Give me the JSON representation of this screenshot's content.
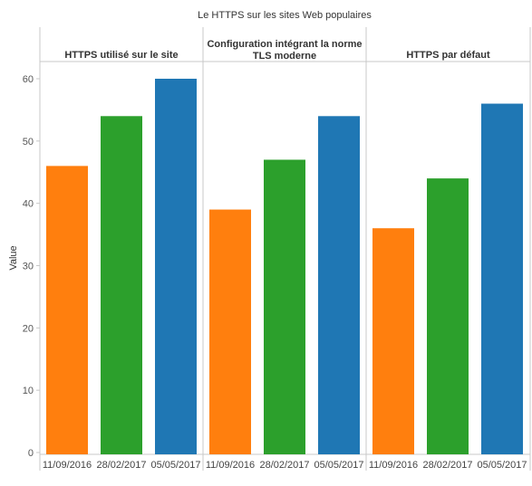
{
  "chart_data": {
    "type": "bar",
    "title": "Le HTTPS sur les sites Web populaires",
    "ylabel": "Value",
    "ylim": [
      0,
      60
    ],
    "yticks": [
      0,
      10,
      20,
      30,
      40,
      50,
      60
    ],
    "grid": false,
    "categories": [
      "11/09/2016",
      "28/02/2017",
      "05/05/2017"
    ],
    "colors": [
      "#ff7f0e",
      "#2ca02c",
      "#1f77b4"
    ],
    "panels": [
      {
        "title": [
          "HTTPS utilisé sur le site"
        ],
        "values": [
          46,
          54,
          60
        ]
      },
      {
        "title": [
          "Configuration intégrant la norme",
          "TLS moderne"
        ],
        "values": [
          39,
          47,
          54
        ]
      },
      {
        "title": [
          "HTTPS par défaut"
        ],
        "values": [
          36,
          44,
          56
        ]
      }
    ]
  }
}
